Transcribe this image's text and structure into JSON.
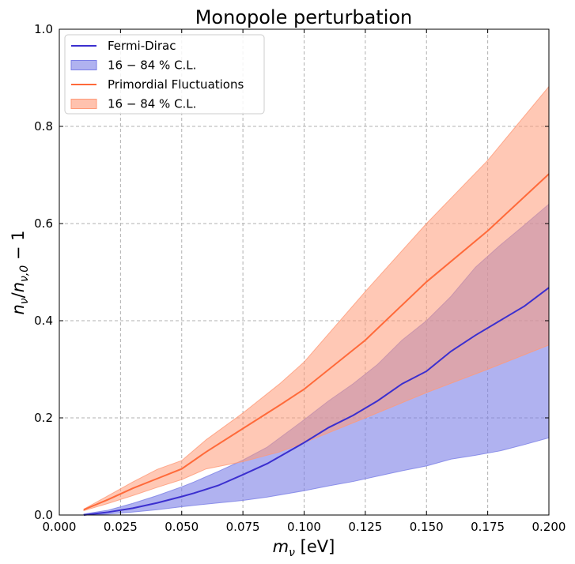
{
  "chart_data": {
    "type": "line",
    "title": "Monopole perturbation",
    "xlabel": {
      "base": "m",
      "sub": "ν",
      "suffix": " [eV]"
    },
    "ylabel": {
      "parts": [
        {
          "t": "n",
          "sub": "ν"
        },
        {
          "t": "/"
        },
        {
          "t": "n",
          "sub": "ν,0"
        },
        {
          "t": " − 1"
        }
      ]
    },
    "xlim": [
      0.0,
      0.2
    ],
    "ylim": [
      0.0,
      1.0
    ],
    "xticks": [
      0.0,
      0.025,
      0.05,
      0.075,
      0.1,
      0.125,
      0.15,
      0.175,
      0.2
    ],
    "xtick_labels": [
      "0.000",
      "0.025",
      "0.050",
      "0.075",
      "0.100",
      "0.125",
      "0.150",
      "0.175",
      "0.200"
    ],
    "yticks": [
      0.0,
      0.2,
      0.4,
      0.6,
      0.8,
      1.0
    ],
    "ytick_labels": [
      "0.0",
      "0.2",
      "0.4",
      "0.6",
      "0.8",
      "1.0"
    ],
    "grid": true,
    "legend_position": "top-left",
    "legend": [
      {
        "kind": "line",
        "label": "Fermi-Dirac",
        "color": "#3b2fcf"
      },
      {
        "kind": "band",
        "label": "16 − 84 % C.L.",
        "color": "#7b7fe6"
      },
      {
        "kind": "line",
        "label": "Primordial Fluctuations",
        "color": "#ff6a3a"
      },
      {
        "kind": "band",
        "label": "16 − 84 % C.L.",
        "color": "#ff9a78"
      }
    ],
    "series": [
      {
        "name": "Fermi-Dirac",
        "color": "#3b2fcf",
        "band_color": "#7b7fe6",
        "x": [
          0.01,
          0.02,
          0.03,
          0.04,
          0.05,
          0.055,
          0.065,
          0.075,
          0.085,
          0.1,
          0.11,
          0.12,
          0.13,
          0.14,
          0.15,
          0.16,
          0.17,
          0.18,
          0.19,
          0.2
        ],
        "y": [
          0.0,
          0.006,
          0.014,
          0.025,
          0.038,
          0.045,
          0.061,
          0.083,
          0.106,
          0.149,
          0.18,
          0.205,
          0.235,
          0.27,
          0.296,
          0.337,
          0.37,
          0.4,
          0.43,
          0.468
        ],
        "lower": [
          0.0,
          0.002,
          0.006,
          0.011,
          0.017,
          0.02,
          0.025,
          0.03,
          0.037,
          0.05,
          0.06,
          0.069,
          0.08,
          0.091,
          0.101,
          0.115,
          0.123,
          0.132,
          0.145,
          0.159
        ],
        "upper": [
          0.002,
          0.01,
          0.024,
          0.04,
          0.058,
          0.068,
          0.09,
          0.113,
          0.14,
          0.196,
          0.235,
          0.27,
          0.31,
          0.36,
          0.4,
          0.45,
          0.51,
          0.555,
          0.597,
          0.64
        ]
      },
      {
        "name": "Primordial Fluctuations",
        "color": "#ff6a3a",
        "band_color": "#ff9a78",
        "x": [
          0.01,
          0.02,
          0.03,
          0.04,
          0.05,
          0.06,
          0.075,
          0.09,
          0.1,
          0.125,
          0.15,
          0.175,
          0.2
        ],
        "y": [
          0.011,
          0.032,
          0.055,
          0.075,
          0.095,
          0.13,
          0.178,
          0.226,
          0.259,
          0.36,
          0.48,
          0.585,
          0.702
        ],
        "lower": [
          0.009,
          0.024,
          0.04,
          0.057,
          0.073,
          0.095,
          0.11,
          0.13,
          0.149,
          0.2,
          0.252,
          0.3,
          0.35
        ],
        "upper": [
          0.012,
          0.04,
          0.068,
          0.094,
          0.112,
          0.155,
          0.21,
          0.27,
          0.315,
          0.46,
          0.6,
          0.73,
          0.882
        ]
      }
    ]
  }
}
